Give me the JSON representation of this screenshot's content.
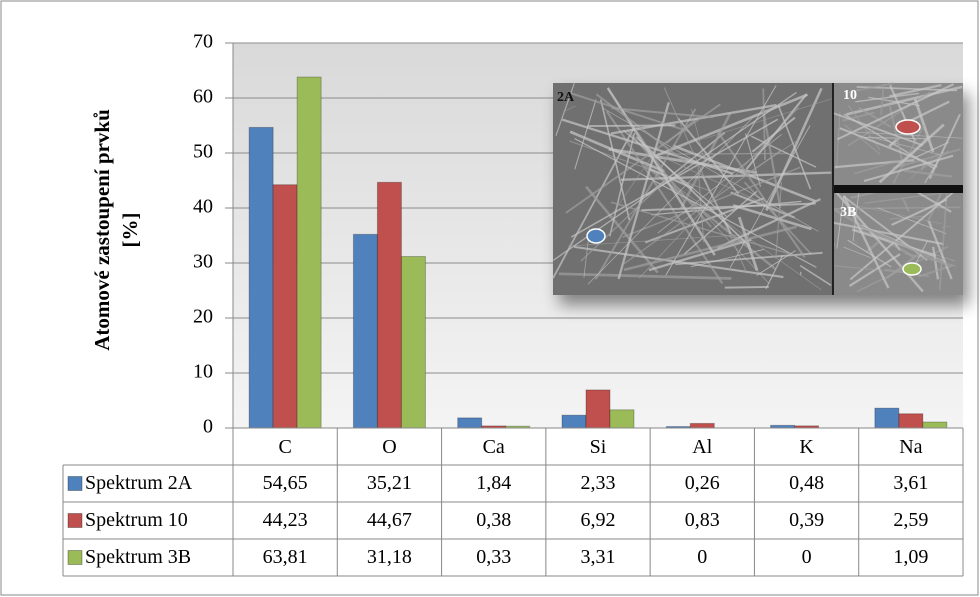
{
  "chart_data": {
    "type": "bar",
    "ylabel": [
      "Atomové zastoupení prvků",
      "[%]"
    ],
    "categories": [
      "C",
      "O",
      "Ca",
      "Si",
      "Al",
      "K",
      "Na"
    ],
    "series": [
      {
        "name": "Spektrum 2A",
        "color": "#4f81bd",
        "values": [
          54.65,
          35.21,
          1.84,
          2.33,
          0.26,
          0.48,
          3.61
        ],
        "value_labels": [
          "54,65",
          "35,21",
          "1,84",
          "2,33",
          "0,26",
          "0,48",
          "3,61"
        ]
      },
      {
        "name": "Spektrum 10",
        "color": "#c0504d",
        "values": [
          44.23,
          44.67,
          0.38,
          6.92,
          0.83,
          0.39,
          2.59
        ],
        "value_labels": [
          "44,23",
          "44,67",
          "0,38",
          "6,92",
          "0,83",
          "0,39",
          "2,59"
        ]
      },
      {
        "name": "Spektrum 3B",
        "color": "#9bbb59",
        "values": [
          63.81,
          31.18,
          0.33,
          3.31,
          0,
          0,
          1.09
        ],
        "value_labels": [
          "63,81",
          "31,18",
          "0,33",
          "3,31",
          "0",
          "0",
          "1,09"
        ]
      }
    ],
    "ylim": [
      0,
      70
    ],
    "yticks": [
      0,
      10,
      20,
      30,
      40,
      50,
      60,
      70
    ],
    "grid": true,
    "annotations": [
      "2A",
      "10",
      "3B"
    ]
  }
}
